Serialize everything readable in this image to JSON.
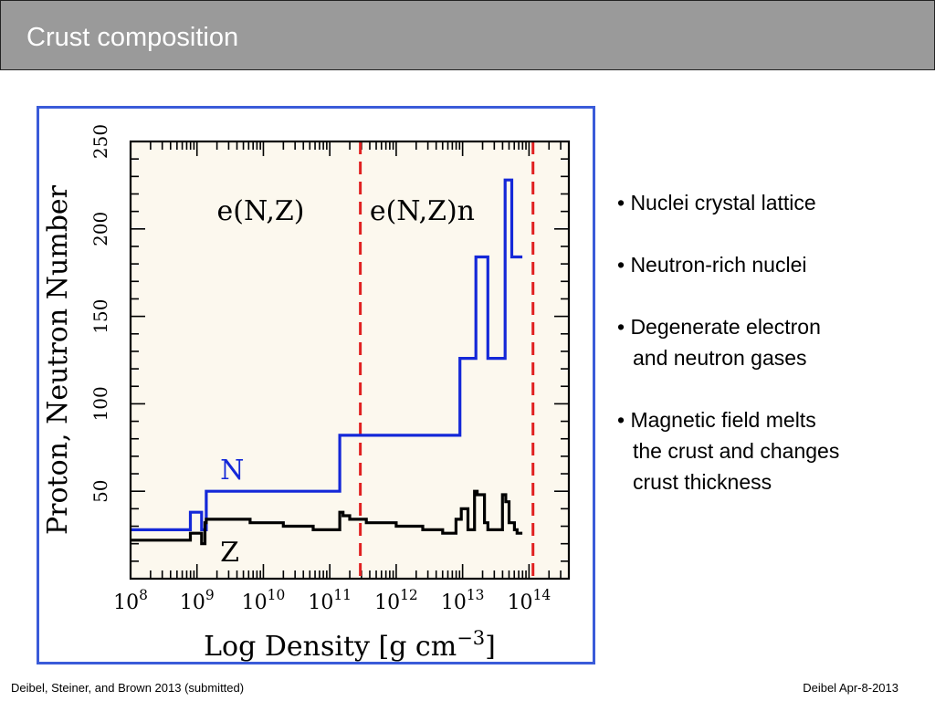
{
  "slide": {
    "title": "Crust composition",
    "bullets": [
      [
        "• Nuclei crystal lattice"
      ],
      [
        "• Neutron-rich nuclei"
      ],
      [
        "• Degenerate electron",
        "and neutron gases"
      ],
      [
        "• Magnetic field melts",
        "the crust and changes",
        "crust thickness"
      ]
    ],
    "footer_left": "Deibel, Steiner, and Brown 2013 (submitted)",
    "footer_right": "Deibel Apr-8-2013"
  },
  "chart_data": {
    "type": "line",
    "xlabel": "Log Density [g cm^-3]",
    "ylabel": "Proton, Neutron Number",
    "x_scale": "log",
    "xlim": [
      8,
      14.6
    ],
    "ylim": [
      0,
      250
    ],
    "x_ticks": [
      8,
      9,
      10,
      11,
      12,
      13,
      14
    ],
    "x_tick_labels": [
      "10^8",
      "10^9",
      "10^10",
      "10^11",
      "10^12",
      "10^13",
      "10^14"
    ],
    "y_ticks": [
      50,
      100,
      150,
      200,
      250
    ],
    "colors": {
      "N": "#1428d8",
      "Z": "#000000",
      "boundary": "#e02020",
      "plot_bg": "#fcf8ee",
      "frame": "#3a5bd9"
    },
    "region_labels": [
      "e(N,Z)",
      "e(N,Z)n"
    ],
    "boundaries": [
      11.46,
      14.06
    ],
    "series": [
      {
        "name": "N",
        "x": [
          8,
          8.9,
          8.9,
          9.07,
          9.07,
          9.14,
          9.14,
          11.15,
          11.15,
          12.96,
          12.96,
          13.2,
          13.2,
          13.38,
          13.38,
          13.64,
          13.64,
          13.74,
          13.74,
          13.9
        ],
        "y": [
          28,
          28,
          38,
          38,
          28,
          28,
          50,
          50,
          82,
          82,
          126,
          126,
          184,
          184,
          126,
          126,
          228,
          228,
          184,
          184
        ]
      },
      {
        "name": "Z",
        "x": [
          8,
          8.9,
          8.9,
          9.07,
          9.07,
          9.12,
          9.12,
          9.14,
          9.14,
          9.8,
          9.8,
          10.3,
          10.3,
          10.75,
          10.75,
          11.15,
          11.15,
          11.2,
          11.2,
          11.3,
          11.3,
          11.55,
          11.55,
          12.0,
          12.0,
          12.4,
          12.4,
          12.7,
          12.7,
          12.9,
          12.9,
          12.98,
          12.98,
          13.08,
          13.08,
          13.18,
          13.18,
          13.22,
          13.22,
          13.33,
          13.33,
          13.38,
          13.38,
          13.6,
          13.6,
          13.65,
          13.65,
          13.7,
          13.7,
          13.78,
          13.78,
          13.82,
          13.82,
          13.9
        ],
        "y": [
          22,
          22,
          26,
          26,
          20,
          20,
          32,
          32,
          34,
          34,
          32,
          32,
          30,
          30,
          28,
          28,
          38,
          38,
          36,
          36,
          34,
          34,
          32,
          32,
          30,
          30,
          28,
          28,
          26,
          26,
          34,
          34,
          40,
          40,
          28,
          28,
          50,
          50,
          48,
          48,
          32,
          32,
          28,
          28,
          48,
          48,
          44,
          44,
          32,
          32,
          28,
          28,
          26,
          26
        ]
      }
    ]
  }
}
